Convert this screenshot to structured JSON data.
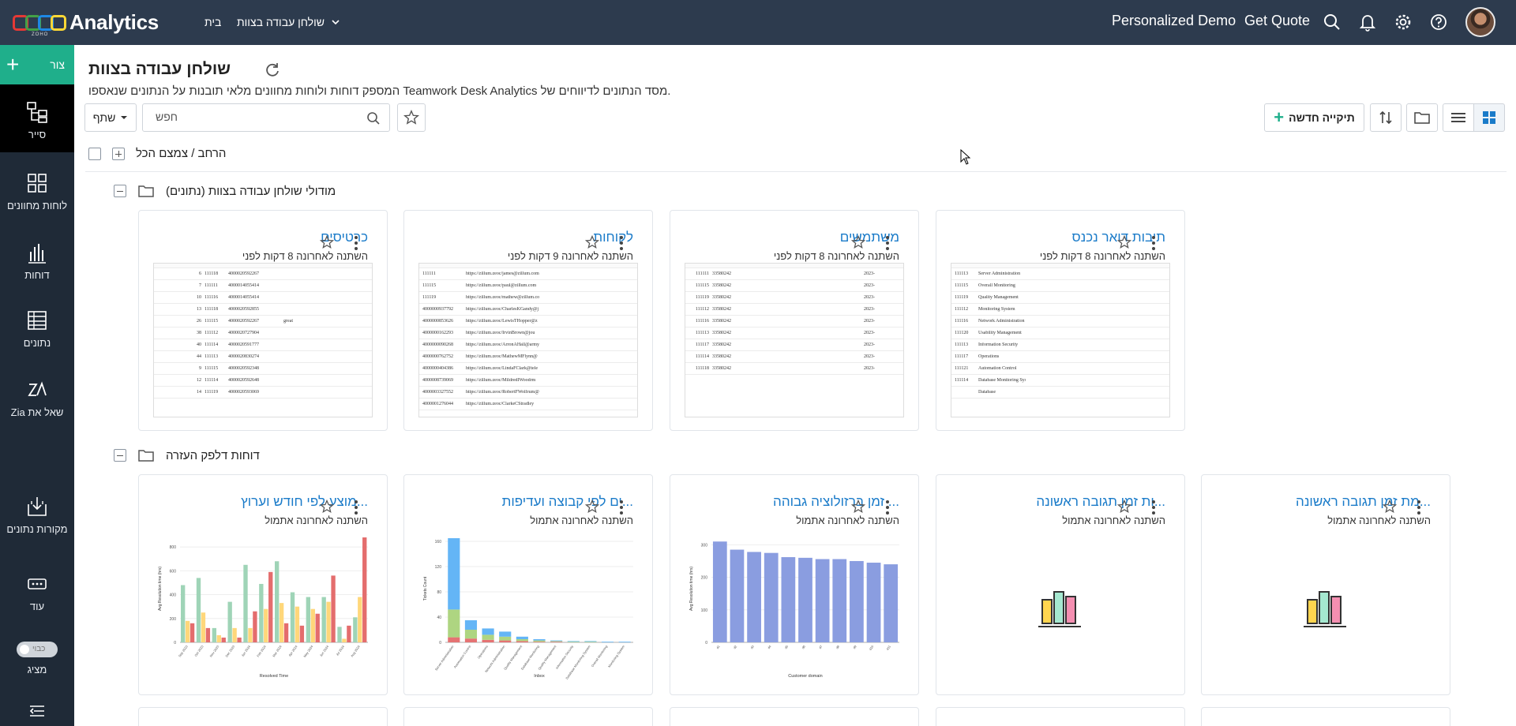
{
  "topbar": {
    "brand": "Analytics",
    "brand_small": "ZOHO",
    "nav_home": "בית",
    "nav_workspace": "שולחן עבודה בצוות",
    "personalized_demo": "Personalized Demo",
    "get_quote": "Get Quote",
    "logo_colors": [
      "#e53935",
      "#43a047",
      "#1e88e5",
      "#fdd835"
    ]
  },
  "sidebar": {
    "create_label": "צור",
    "items": [
      {
        "label": "סייר",
        "icon": "explorer-icon"
      },
      {
        "label": "לוחות מחוונים",
        "icon": "dashboards-icon"
      },
      {
        "label": "דוחות",
        "icon": "reports-icon"
      },
      {
        "label": "נתונים",
        "icon": "data-table-icon"
      },
      {
        "label": "Zia שאל את",
        "icon": "zia-icon"
      },
      {
        "label": "מקורות נתונים",
        "icon": "data-sources-icon"
      },
      {
        "label": "עוד",
        "icon": "more-icon"
      },
      {
        "label": "מציג",
        "icon": "presenter-toggle-icon"
      }
    ],
    "toggle_text": "כבוי"
  },
  "header": {
    "title": "שולחן עבודה בצוות",
    "description": "המספק דוחות ולוחות מחוונים מלאי תובנות על הנתונים שנאספו Teamwork Desk Analytics מסד הנתונים לדיווחים של.",
    "share_label": "שתף",
    "search_placeholder": "חפש",
    "new_folder_label": "תיקייה חדשה",
    "expand_collapse_label": "הרחב / צמצם הכל"
  },
  "sections": [
    {
      "title": "מודולי שולחן עבודה בצוות (נתונים)",
      "cards": [
        {
          "title": "תיבות דואר נכנס",
          "subtitle": "השתנה לאחרונה 8 דקות לפני",
          "thumb": "mailbox"
        },
        {
          "title": "משתמשים",
          "subtitle": "השתנה לאחרונה 8 דקות לפני",
          "thumb": "users"
        },
        {
          "title": "לקוחות",
          "subtitle": "השתנה לאחרונה 9 דקות לפני",
          "thumb": "customers"
        },
        {
          "title": "כרטיסים",
          "subtitle": "השתנה לאחרונה 8 דקות לפני",
          "thumb": "tickets"
        }
      ]
    },
    {
      "title": "דוחות דלפק העזרה",
      "cards": [
        {
          "title": "...מת זמן תגובה ראשונה",
          "subtitle": "השתנה לאחרונה אתמול",
          "thumb": "chart-icon"
        },
        {
          "title": "...ות זמן תגובה ראשונה",
          "subtitle": "השתנה לאחרונה אתמול",
          "thumb": "chart-icon"
        },
        {
          "title": "... זמן ברזולוציה גבוהה",
          "subtitle": "השתנה לאחרונה אתמול",
          "thumb": "bar-blue"
        },
        {
          "title": "...ים לפי קבוצה ועדיפות",
          "subtitle": "השתנה לאחרונה אתמול",
          "thumb": "stacked"
        },
        {
          "title": "...מוצע לפי חודש וערוץ",
          "subtitle": "השתנה לאחרונה אתמול",
          "thumb": "grouped"
        }
      ]
    }
  ],
  "thumb_tables": {
    "mailbox": [
      [
        "111113",
        "Server Administration"
      ],
      [
        "111115",
        "Overall Monitoring"
      ],
      [
        "111119",
        "Quality Management"
      ],
      [
        "111112",
        "Monitoring System"
      ],
      [
        "111116",
        "Network Administration"
      ],
      [
        "111120",
        "Usability Management"
      ],
      [
        "111113",
        "Information Security"
      ],
      [
        "111117",
        "Operations"
      ],
      [
        "111121",
        "Automation Control"
      ],
      [
        "111114",
        "Database Monitoring System"
      ],
      [
        "",
        "Database"
      ]
    ],
    "users": [
      [
        "111111",
        "33580242",
        "2023-"
      ],
      [
        "111115",
        "33580242",
        "2023-"
      ],
      [
        "111119",
        "33580242",
        "2023-"
      ],
      [
        "111112",
        "33580242",
        "2023-"
      ],
      [
        "111116",
        "33580242",
        "2023-"
      ],
      [
        "111113",
        "33580242",
        "2023-"
      ],
      [
        "111117",
        "33580242",
        "2023-"
      ],
      [
        "111114",
        "33580242",
        "2023-"
      ],
      [
        "111118",
        "33580242",
        "2023-"
      ]
    ],
    "customers": [
      [
        "111111",
        "https://zillum.zeoc/james@zillum.com"
      ],
      [
        "111115",
        "https://zillum.zeoc/paul@zillum.com"
      ],
      [
        "111119",
        "https://zillum.zeoc/mathew@zillum.co"
      ],
      [
        "4000000937792",
        "https://zillum.zeoc/CharlesKGandy@j"
      ],
      [
        "4000000853626",
        "https://zillum.zeoc/LewisTHopper@z"
      ],
      [
        "4000000162293",
        "https://zillum.zeoc/IrvinBrown@jou"
      ],
      [
        "4000000090268",
        "https://zillum.zeoc/ArronAHall@army"
      ],
      [
        "4000000762752",
        "https://zillum.zeoc/MathewMFlynn@"
      ],
      [
        "4000000404386",
        "https://zillum.zeoc/LindaFClark@tele"
      ],
      [
        "4000008739069",
        "https://zillum.zeoc/MildredIWoodrm"
      ],
      [
        "4000003327552",
        "https://zillum.zeoc/RobertFWolfrum@"
      ],
      [
        "4000001276044",
        "https://zillum.zeoc/ClarkeCStradley"
      ]
    ],
    "tickets": [
      [
        "6",
        "111118",
        "4000020592267",
        ""
      ],
      [
        "7",
        "111111",
        "4000014055414",
        ""
      ],
      [
        "10",
        "111116",
        "4000014055414",
        ""
      ],
      [
        "13",
        "111118",
        "4000020592855",
        ""
      ],
      [
        "26",
        "111115",
        "4000020592267",
        "great"
      ],
      [
        "38",
        "111112",
        "4000020727904",
        ""
      ],
      [
        "40",
        "111114",
        "4000020591777",
        ""
      ],
      [
        "44",
        "111113",
        "4000020830274",
        ""
      ],
      [
        "9",
        "111115",
        "4000020592348",
        ""
      ],
      [
        "12",
        "111114",
        "4000020592648",
        ""
      ],
      [
        "14",
        "111119",
        "4000020593069",
        ""
      ]
    ]
  },
  "chart_data": [
    {
      "type": "bar",
      "title": "",
      "xlabel": "Customer domain",
      "ylabel": "Avg Resolution time (hrs)",
      "ylim": [
        0,
        330
      ],
      "yticks": [
        0,
        100,
        200,
        300
      ],
      "categories": [
        "d1",
        "d2",
        "d3",
        "d4",
        "d5",
        "d6",
        "d7",
        "d8",
        "d9",
        "d10",
        "d11"
      ],
      "values": [
        310,
        285,
        278,
        275,
        262,
        260,
        256,
        256,
        250,
        245,
        240
      ],
      "color": "#8a9de0"
    },
    {
      "type": "bar",
      "title": "",
      "xlabel": "Inbox",
      "ylabel": "Tickets Count",
      "ylim": [
        0,
        170
      ],
      "yticks": [
        0,
        40,
        80,
        120,
        160
      ],
      "categories": [
        "Server Administration",
        "Automation Control",
        "Operations",
        "Network Administration",
        "Quality Management",
        "Database Monitoring",
        "Quality Management",
        "Information Security",
        "Database Monitoring System",
        "Overall Monitoring",
        "Monitoring System"
      ],
      "series": [
        {
          "name": "",
          "color": "#e57373",
          "values": [
            8,
            6,
            4,
            3,
            2,
            1,
            1,
            0,
            0,
            0,
            0
          ]
        },
        {
          "name": "",
          "color": "#aed581",
          "values": [
            44,
            14,
            8,
            6,
            3,
            2,
            1,
            1,
            1,
            0,
            0
          ]
        },
        {
          "name": "",
          "color": "#64b5f6",
          "values": [
            113,
            15,
            10,
            8,
            4,
            2,
            1,
            1,
            1,
            1,
            1
          ]
        }
      ]
    },
    {
      "type": "bar",
      "title": "",
      "xlabel": "Resolved Time",
      "ylabel": "Avg Resolution time (hrs)",
      "ylim": [
        0,
        900
      ],
      "yticks": [
        0,
        200,
        400,
        600,
        800
      ],
      "categories": [
        "Sep 2023",
        "Oct 2023",
        "Nov 2023",
        "Dec 2023",
        "Jan 2024",
        "Feb 2024",
        "Mar 2024",
        "Apr 2024",
        "May 2024",
        "Jun 2024",
        "Jul 2024",
        "Aug 2024"
      ],
      "series": [
        {
          "name": "",
          "color": "#9fd4b7",
          "values": [
            480,
            540,
            120,
            340,
            650,
            490,
            680,
            420,
            380,
            380,
            130,
            210
          ]
        },
        {
          "name": "",
          "color": "#ffd77a",
          "values": [
            180,
            250,
            60,
            120,
            120,
            280,
            330,
            300,
            280,
            340,
            30,
            380
          ]
        },
        {
          "name": "",
          "color": "#e46d6d",
          "values": [
            160,
            120,
            40,
            40,
            260,
            590,
            160,
            140,
            240,
            560,
            140,
            880
          ]
        }
      ]
    }
  ],
  "colors": {
    "topbar_bg": "#2d3b4e",
    "sidebar_bg": "#1f2a37",
    "accent_green": "#1faf8b",
    "link_blue": "#1a7bc9"
  }
}
